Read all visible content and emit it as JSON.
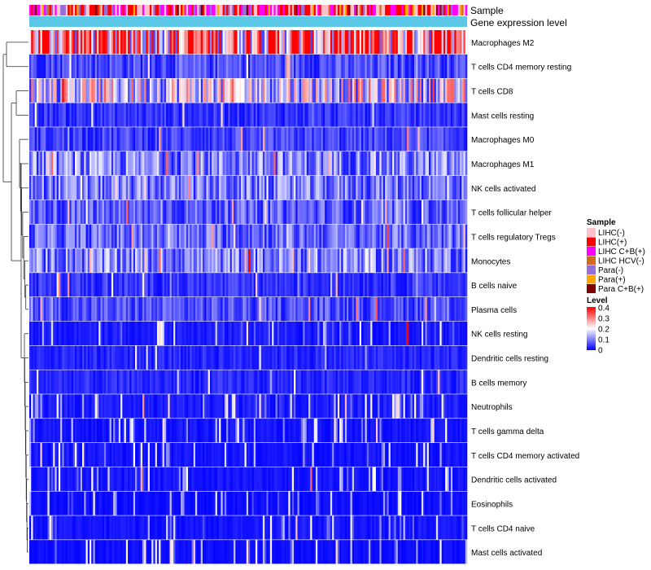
{
  "chart_data": {
    "type": "heatmap",
    "title": "",
    "annotation_labels": {
      "sample": "Sample",
      "gene": "Gene expression level"
    },
    "rows": [
      "Macrophages M2",
      "T cells CD4 memory resting",
      "T cells CD8",
      "Mast cells resting",
      "Macrophages M0",
      "Macrophages M1",
      "NK cells activated",
      "T cells follicular helper",
      "T cells regulatory  Tregs",
      "Monocytes",
      "B cells naive",
      "Plasma cells",
      "NK cells resting",
      "Dendritic cells resting",
      "B cells memory",
      "Neutrophils",
      "T cells gamma delta",
      "T cells CD4 memory activated",
      "Dendritic cells activated",
      "Eosinophils",
      "T cells CD4 naive",
      "Mast cells activated"
    ],
    "row_mean_levels": [
      0.3,
      0.06,
      0.18,
      0.04,
      0.05,
      0.1,
      0.09,
      0.07,
      0.08,
      0.1,
      0.04,
      0.06,
      0.02,
      0.03,
      0.03,
      0.02,
      0.015,
      0.015,
      0.015,
      0.01,
      0.015,
      0.01
    ],
    "sample_count": 240,
    "gene_expression_color": "#5bc8e8",
    "legend_sample": {
      "title": "Sample",
      "items": [
        {
          "label": "LIHC(-)",
          "color": "#ffc0cb"
        },
        {
          "label": "LIHC(+)",
          "color": "#ff0000"
        },
        {
          "label": "LIHC C+B(+)",
          "color": "#ff00ff"
        },
        {
          "label": "LIHC HCV(-)",
          "color": "#d2691e"
        },
        {
          "label": "Para(-)",
          "color": "#9370db"
        },
        {
          "label": "Para(+)",
          "color": "#ffa500"
        },
        {
          "label": "Para C+B(+)",
          "color": "#800000"
        }
      ]
    },
    "legend_level": {
      "title": "Level",
      "ticks": [
        "0.4",
        "0.3",
        "0.2",
        "0.1",
        "0"
      ],
      "range": [
        0,
        0.4
      ],
      "colors": {
        "low": "#0000ff",
        "mid": "#ffffff",
        "high": "#ff0000"
      }
    }
  }
}
